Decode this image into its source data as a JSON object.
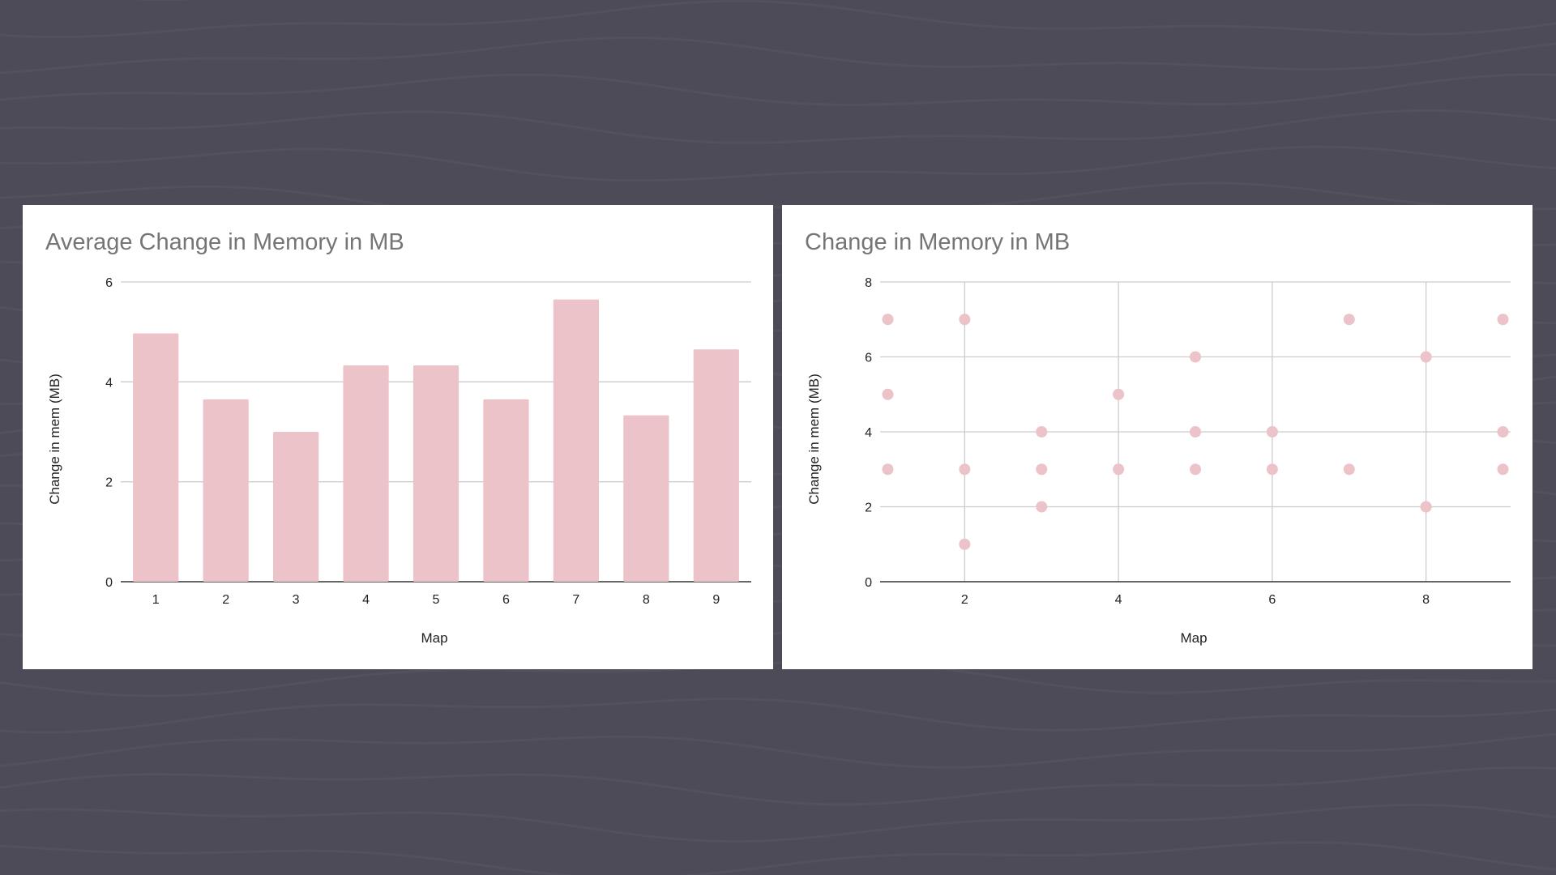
{
  "colors": {
    "background": "#4d4b57",
    "wave": "#5a5864",
    "panel": "#ffffff",
    "mark": "#ebc3c9",
    "grid": "#cccccc",
    "baseline": "#333333",
    "title": "#757575"
  },
  "chart_data": [
    {
      "type": "bar",
      "title": "Average Change in Memory in MB",
      "xlabel": "Map",
      "ylabel": "Change in mem (MB)",
      "categories": [
        "1",
        "2",
        "3",
        "4",
        "5",
        "6",
        "7",
        "8",
        "9"
      ],
      "values": [
        4.97,
        3.65,
        3.0,
        4.33,
        4.33,
        3.65,
        5.65,
        3.33,
        4.65
      ],
      "ylim": [
        0,
        6
      ],
      "yticks": [
        "0",
        "2",
        "4",
        "6"
      ],
      "grid": "horizontal",
      "legend": "none"
    },
    {
      "type": "scatter",
      "title": "Change in Memory in MB",
      "xlabel": "Map",
      "ylabel": "Change in mem (MB)",
      "xlim": [
        0.9,
        9.1
      ],
      "ylim": [
        0,
        8
      ],
      "xticks": [
        "2",
        "4",
        "6",
        "8"
      ],
      "yticks": [
        "0",
        "2",
        "4",
        "6",
        "8"
      ],
      "grid": "both",
      "legend": "none",
      "points": [
        {
          "x": 1,
          "y": 7
        },
        {
          "x": 1,
          "y": 5
        },
        {
          "x": 1,
          "y": 3
        },
        {
          "x": 2,
          "y": 7
        },
        {
          "x": 2,
          "y": 3
        },
        {
          "x": 2,
          "y": 1
        },
        {
          "x": 3,
          "y": 4
        },
        {
          "x": 3,
          "y": 3
        },
        {
          "x": 3,
          "y": 2
        },
        {
          "x": 4,
          "y": 5
        },
        {
          "x": 4,
          "y": 3
        },
        {
          "x": 5,
          "y": 6
        },
        {
          "x": 5,
          "y": 4
        },
        {
          "x": 5,
          "y": 3
        },
        {
          "x": 6,
          "y": 4
        },
        {
          "x": 6,
          "y": 3
        },
        {
          "x": 7,
          "y": 7
        },
        {
          "x": 7,
          "y": 3
        },
        {
          "x": 8,
          "y": 6
        },
        {
          "x": 8,
          "y": 2
        },
        {
          "x": 9,
          "y": 7
        },
        {
          "x": 9,
          "y": 4
        },
        {
          "x": 9,
          "y": 3
        }
      ]
    }
  ]
}
